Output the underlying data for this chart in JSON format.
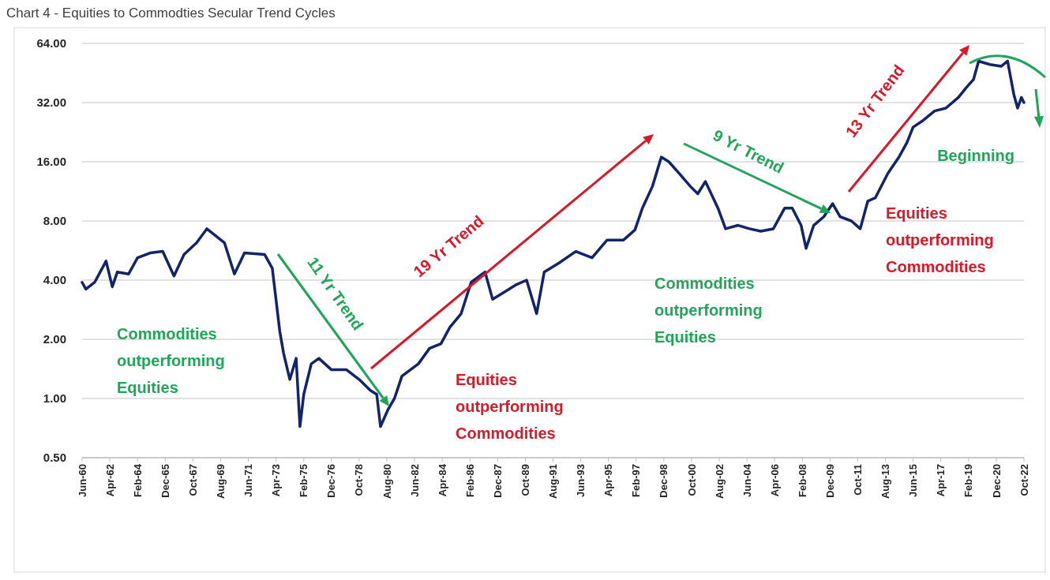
{
  "chart_data": {
    "type": "line",
    "title": "Chart 4 - Equities to Commodties Secular Trend Cycles",
    "annotations": [
      "11 Yr Trend",
      "19 Yr Trend",
      "9 Yr Trend",
      "13 Yr Trend",
      "Beginning",
      "Commodities outperforming Equities",
      "Equities outperforming Commodities",
      "Commodities outperforming Equities",
      "Equities outperforming Commodities"
    ],
    "x": [
      "1960-06",
      "1960-09",
      "1961-04",
      "1962-01",
      "1962-06",
      "1962-10",
      "1963-07",
      "1964-02",
      "1964-12",
      "1965-10",
      "1966-07",
      "1967-03",
      "1968-01",
      "1968-09",
      "1969-11",
      "1970-07",
      "1971-03",
      "1972-07",
      "1973-01",
      "1973-07",
      "1973-10",
      "1974-03",
      "1974-08",
      "1974-11",
      "1975-02",
      "1975-08",
      "1976-02",
      "1976-12",
      "1977-12",
      "1978-10",
      "1979-07",
      "1979-12",
      "1980-03",
      "1980-09",
      "1981-02",
      "1981-08",
      "1982-09",
      "1983-06",
      "1984-03",
      "1984-10",
      "1985-07",
      "1986-03",
      "1987-02",
      "1987-08",
      "1988-06",
      "1989-03",
      "1989-11",
      "1990-07",
      "1991-01",
      "1992-01",
      "1993-02",
      "1994-03",
      "1995-03",
      "1996-04",
      "1997-01",
      "1997-07",
      "1998-03",
      "1998-10",
      "1999-04",
      "1999-12",
      "2000-09",
      "2001-03",
      "2001-09",
      "2002-07",
      "2003-01",
      "2003-11",
      "2004-08",
      "2005-05",
      "2006-03",
      "2006-12",
      "2007-06",
      "2008-01",
      "2008-05",
      "2008-11",
      "2009-07",
      "2010-02",
      "2010-08",
      "2011-05",
      "2011-12",
      "2012-06",
      "2012-12",
      "2013-10",
      "2014-07",
      "2015-01",
      "2015-06",
      "2016-02",
      "2016-11",
      "2017-08",
      "2018-06",
      "2018-12",
      "2019-06",
      "2019-10",
      "2020-07",
      "2021-04",
      "2021-09",
      "2022-02",
      "2022-05",
      "2022-08",
      "2022-10"
    ],
    "series": [
      {
        "color": "#14246b",
        "values": [
          3.9,
          3.6,
          3.9,
          5.0,
          3.7,
          4.4,
          4.3,
          5.2,
          5.5,
          5.6,
          4.2,
          5.4,
          6.2,
          7.3,
          6.2,
          4.3,
          5.5,
          5.4,
          4.6,
          2.2,
          1.7,
          1.25,
          1.6,
          0.72,
          1.05,
          1.5,
          1.6,
          1.4,
          1.4,
          1.25,
          1.1,
          1.05,
          0.72,
          0.88,
          1.0,
          1.3,
          1.5,
          1.8,
          1.9,
          2.3,
          2.7,
          3.9,
          4.4,
          3.2,
          3.5,
          3.8,
          4.0,
          2.7,
          4.4,
          4.9,
          5.6,
          5.2,
          6.4,
          6.4,
          7.2,
          9.3,
          12,
          16.9,
          16,
          14,
          12,
          11,
          12.7,
          9.3,
          7.3,
          7.6,
          7.3,
          7.1,
          7.3,
          9.3,
          9.3,
          7.6,
          5.8,
          7.6,
          8.4,
          9.8,
          8.4,
          8.0,
          7.3,
          10.1,
          10.5,
          14,
          17,
          20,
          24,
          26,
          29,
          30,
          34,
          38,
          42,
          52,
          50,
          49,
          52,
          35,
          30,
          34,
          32
        ]
      }
    ],
    "xlim": [
      "1960-06",
      "2022-10"
    ],
    "xticks": [
      {
        "value": "1960-06",
        "label": "Jun-60"
      },
      {
        "value": "1962-04",
        "label": "Apr-62"
      },
      {
        "value": "1964-02",
        "label": "Feb-64"
      },
      {
        "value": "1965-12",
        "label": "Dec-65"
      },
      {
        "value": "1967-10",
        "label": "Oct-67"
      },
      {
        "value": "1969-08",
        "label": "Aug-69"
      },
      {
        "value": "1971-06",
        "label": "Jun-71"
      },
      {
        "value": "1973-04",
        "label": "Apr-73"
      },
      {
        "value": "1975-02",
        "label": "Feb-75"
      },
      {
        "value": "1976-12",
        "label": "Dec-76"
      },
      {
        "value": "1978-10",
        "label": "Oct-78"
      },
      {
        "value": "1980-08",
        "label": "Aug-80"
      },
      {
        "value": "1982-06",
        "label": "Jun-82"
      },
      {
        "value": "1984-04",
        "label": "Apr-84"
      },
      {
        "value": "1986-02",
        "label": "Feb-86"
      },
      {
        "value": "1987-12",
        "label": "Dec-87"
      },
      {
        "value": "1989-10",
        "label": "Oct-89"
      },
      {
        "value": "1991-08",
        "label": "Aug-91"
      },
      {
        "value": "1993-06",
        "label": "Jun-93"
      },
      {
        "value": "1995-04",
        "label": "Apr-95"
      },
      {
        "value": "1997-02",
        "label": "Feb-97"
      },
      {
        "value": "1998-12",
        "label": "Dec-98"
      },
      {
        "value": "2000-10",
        "label": "Oct-00"
      },
      {
        "value": "2002-08",
        "label": "Aug-02"
      },
      {
        "value": "2004-06",
        "label": "Jun-04"
      },
      {
        "value": "2006-04",
        "label": "Apr-06"
      },
      {
        "value": "2008-02",
        "label": "Feb-08"
      },
      {
        "value": "2009-12",
        "label": "Dec-09"
      },
      {
        "value": "2011-10",
        "label": "Oct-11"
      },
      {
        "value": "2013-08",
        "label": "Aug-13"
      },
      {
        "value": "2015-06",
        "label": "Jun-15"
      },
      {
        "value": "2017-04",
        "label": "Apr-17"
      },
      {
        "value": "2019-02",
        "label": "Feb-19"
      },
      {
        "value": "2020-12",
        "label": "Dec-20"
      },
      {
        "value": "2022-10",
        "label": "Oct-22"
      }
    ],
    "ylim": [
      0.5,
      64
    ],
    "yticks": [
      {
        "value": 0.5,
        "label": "0.50"
      },
      {
        "value": 1,
        "label": "1.00"
      },
      {
        "value": 2,
        "label": "2.00"
      },
      {
        "value": 4,
        "label": "4.00"
      },
      {
        "value": 8,
        "label": "8.00"
      },
      {
        "value": 16,
        "label": "16.00"
      },
      {
        "value": 32,
        "label": "32.00"
      },
      {
        "value": 64,
        "label": "64.00"
      }
    ],
    "log": true,
    "grid": "y"
  }
}
